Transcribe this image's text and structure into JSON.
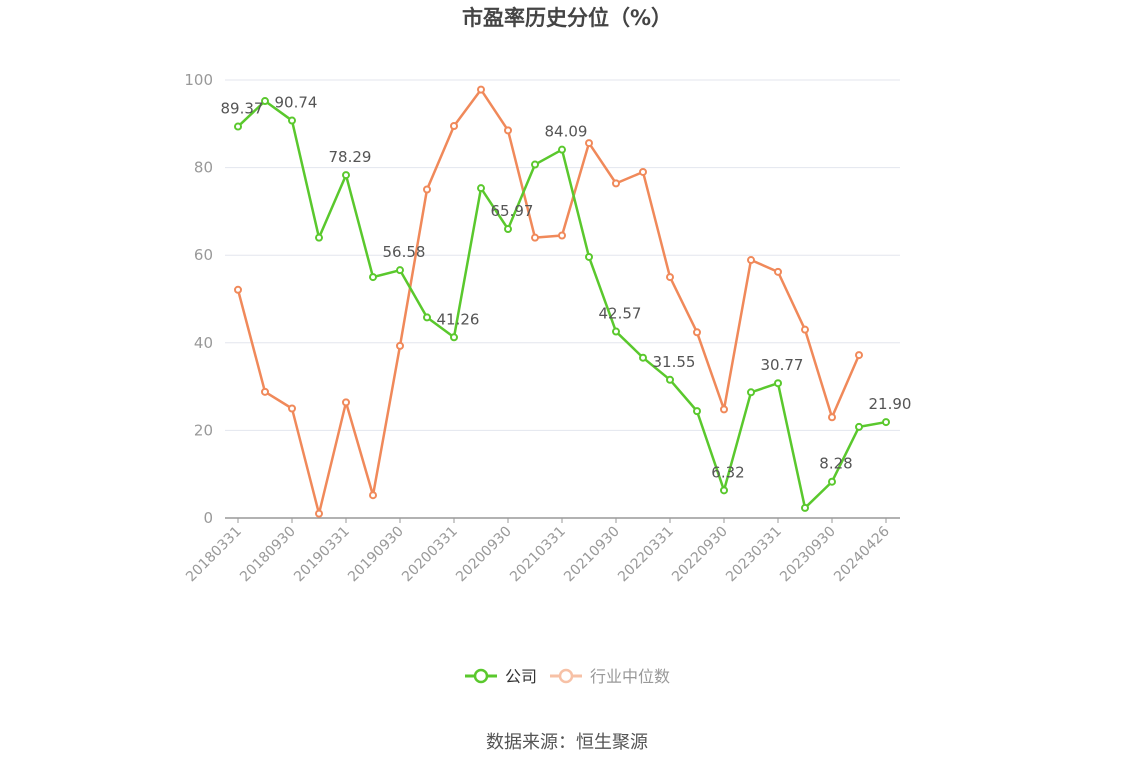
{
  "chart_data": {
    "type": "line",
    "title": "市盈率历史分位（%）",
    "source": "数据来源：恒生聚源",
    "ylim": [
      0,
      100
    ],
    "yticks": [
      0,
      20,
      40,
      60,
      80,
      100
    ],
    "grid": true,
    "legend_position": "bottom",
    "x": [
      "20180331",
      "20180630",
      "20180930",
      "20181231",
      "20190331",
      "20190630",
      "20190930",
      "20191231",
      "20200331",
      "20200630",
      "20200930",
      "20201231",
      "20210331",
      "20210630",
      "20210930",
      "20211231",
      "20220331",
      "20220630",
      "20220930",
      "20221231",
      "20230331",
      "20230630",
      "20230930",
      "20231231",
      "20240426"
    ],
    "xtick_labels": [
      "20180331",
      "20180930",
      "20190331",
      "20190930",
      "20200331",
      "20200930",
      "20210331",
      "20210930",
      "20220331",
      "20220930",
      "20230331",
      "20230930",
      "20240426"
    ],
    "series": [
      {
        "name": "公司",
        "color": "#5ac82d",
        "values": [
          89.37,
          95.2,
          90.74,
          64.0,
          78.29,
          55.0,
          56.58,
          45.8,
          41.26,
          75.3,
          65.97,
          80.7,
          84.09,
          59.6,
          42.57,
          36.6,
          31.55,
          24.4,
          6.32,
          28.7,
          30.77,
          2.3,
          8.28,
          20.8,
          21.9
        ],
        "labels": {
          "0": "89.37",
          "2": "90.74",
          "4": "78.29",
          "6": "56.58",
          "8": "41.26",
          "10": "65.97",
          "12": "84.09",
          "14": "42.57",
          "16": "31.55",
          "18": "6.32",
          "20": "30.77",
          "22": "8.28",
          "24": "21.90"
        }
      },
      {
        "name": "行业中位数",
        "color": "#f0895a",
        "values": [
          52.1,
          28.8,
          25.0,
          1.0,
          26.4,
          5.2,
          39.3,
          75.0,
          89.5,
          97.8,
          88.5,
          64.0,
          64.5,
          85.6,
          76.4,
          79.0,
          55.0,
          42.4,
          24.8,
          58.9,
          56.2,
          43.0,
          23.0,
          37.2,
          null
        ]
      }
    ]
  }
}
